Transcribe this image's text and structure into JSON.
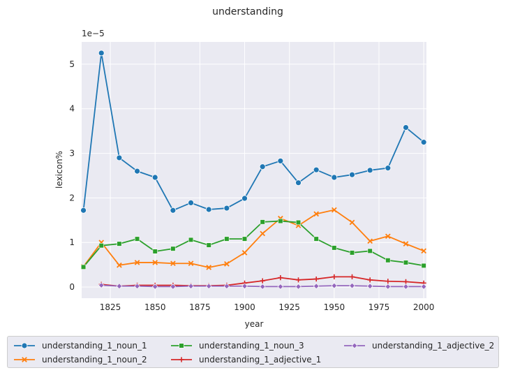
{
  "chart_data": {
    "type": "line",
    "title": "understanding",
    "xlabel": "year",
    "ylabel": "lexicon%",
    "y_multiplier_label": "1e−5",
    "xlim": [
      1809,
      2001.5
    ],
    "ylim": [
      -0.25,
      5.5
    ],
    "x_ticks": [
      1825,
      1850,
      1875,
      1900,
      1925,
      1950,
      1975,
      2000
    ],
    "y_ticks": [
      0,
      1,
      2,
      3,
      4,
      5
    ],
    "grid": true,
    "legend_position": "bottom-outside",
    "series": [
      {
        "name": "understanding_1_noun_1",
        "color": "#1f77b4",
        "marker": "circle",
        "x": [
          1810,
          1820,
          1830,
          1840,
          1850,
          1860,
          1870,
          1880,
          1890,
          1900,
          1910,
          1920,
          1930,
          1940,
          1950,
          1960,
          1970,
          1980,
          1990,
          2000
        ],
        "y": [
          1.72,
          5.25,
          2.9,
          2.6,
          2.46,
          1.72,
          1.89,
          1.74,
          1.77,
          1.99,
          2.7,
          2.83,
          2.34,
          2.63,
          2.46,
          2.52,
          2.62,
          2.67,
          3.58,
          3.25
        ]
      },
      {
        "name": "understanding_1_noun_2",
        "color": "#ff7f0e",
        "marker": "x",
        "x": [
          1810,
          1820,
          1830,
          1840,
          1850,
          1860,
          1870,
          1880,
          1890,
          1900,
          1910,
          1920,
          1930,
          1940,
          1950,
          1960,
          1970,
          1980,
          1990,
          2000
        ],
        "y": [
          0.46,
          1.0,
          0.49,
          0.55,
          0.55,
          0.53,
          0.53,
          0.44,
          0.52,
          0.77,
          1.2,
          1.54,
          1.38,
          1.64,
          1.73,
          1.45,
          1.03,
          1.14,
          0.97,
          0.81
        ]
      },
      {
        "name": "understanding_1_noun_3",
        "color": "#2ca02c",
        "marker": "square",
        "x": [
          1810,
          1820,
          1830,
          1840,
          1850,
          1860,
          1870,
          1880,
          1890,
          1900,
          1910,
          1920,
          1930,
          1940,
          1950,
          1960,
          1970,
          1980,
          1990,
          2000
        ],
        "y": [
          0.45,
          0.93,
          0.97,
          1.08,
          0.8,
          0.86,
          1.06,
          0.94,
          1.08,
          1.08,
          1.46,
          1.48,
          1.45,
          1.08,
          0.88,
          0.77,
          0.81,
          0.6,
          0.55,
          0.48
        ]
      },
      {
        "name": "understanding_1_adjective_1",
        "color": "#d62728",
        "marker": "plus",
        "x": [
          1820,
          1830,
          1840,
          1850,
          1860,
          1870,
          1880,
          1890,
          1900,
          1910,
          1920,
          1930,
          1940,
          1950,
          1960,
          1970,
          1980,
          1990,
          2000
        ],
        "y": [
          0.06,
          0.02,
          0.04,
          0.04,
          0.04,
          0.03,
          0.03,
          0.04,
          0.09,
          0.14,
          0.21,
          0.16,
          0.18,
          0.23,
          0.23,
          0.16,
          0.13,
          0.12,
          0.09
        ]
      },
      {
        "name": "understanding_1_adjective_2",
        "color": "#9467bd",
        "marker": "diamond",
        "x": [
          1820,
          1830,
          1840,
          1850,
          1860,
          1870,
          1880,
          1890,
          1900,
          1910,
          1920,
          1930,
          1940,
          1950,
          1960,
          1970,
          1980,
          1990,
          2000
        ],
        "y": [
          0.04,
          0.02,
          0.02,
          0.01,
          0.01,
          0.02,
          0.02,
          0.02,
          0.02,
          0.01,
          0.01,
          0.01,
          0.02,
          0.03,
          0.03,
          0.02,
          0.01,
          0.01,
          0.01
        ]
      }
    ]
  }
}
